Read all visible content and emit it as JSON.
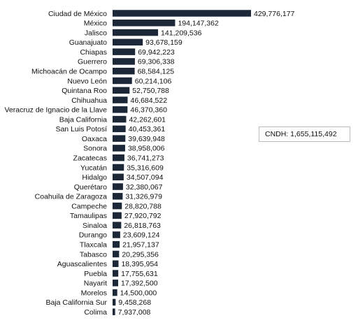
{
  "chart_data": {
    "type": "bar",
    "orientation": "horizontal",
    "bar_color": "#1c2738",
    "categories": [
      "Ciudad de México",
      "México",
      "Jalisco",
      "Guanajuato",
      "Chiapas",
      "Guerrero",
      "Michoacán de Ocampo",
      "Nuevo León",
      "Quintana Roo",
      "Chihuahua",
      "Veracruz de Ignacio de la Llave",
      "Baja California",
      "San Luis Potosí",
      "Oaxaca",
      "Sonora",
      "Zacatecas",
      "Yucatán",
      "Hidalgo",
      "Querétaro",
      "Coahuila de Zaragoza",
      "Campeche",
      "Tamaulipas",
      "Sinaloa",
      "Durango",
      "Tlaxcala",
      "Tabasco",
      "Aguascalientes",
      "Puebla",
      "Nayarit",
      "Morelos",
      "Baja California Sur",
      "Colima"
    ],
    "values": [
      429776177,
      194147362,
      141209536,
      93678159,
      69942223,
      69306338,
      68584125,
      60214106,
      52750788,
      46684522,
      46370360,
      42262601,
      40453361,
      39639948,
      38958006,
      36741273,
      35316609,
      34507094,
      32380067,
      31326979,
      28820788,
      27920792,
      26818763,
      23609124,
      21957137,
      20295356,
      18395954,
      17755631,
      17392500,
      14500000,
      9458268,
      7937008
    ],
    "value_labels": [
      "429,776,177",
      "194,147,362",
      "141,209,536",
      "93,678,159",
      "69,942,223",
      "69,306,338",
      "68,584,125",
      "60,214,106",
      "52,750,788",
      "46,684,522",
      "46,370,360",
      "42,262,601",
      "40,453,361",
      "39,639,948",
      "38,958,006",
      "36,741,273",
      "35,316,609",
      "34,507,094",
      "32,380,067",
      "31,326,979",
      "28,820,788",
      "27,920,792",
      "26,818,763",
      "23,609,124",
      "21,957,137",
      "20,295,356",
      "18,395,954",
      "17,755,631",
      "17,392,500",
      "14,500,000",
      "9,458,268",
      "7,937,008"
    ],
    "grid": false
  },
  "total_box": {
    "text": "CNDH: 1,655,115,492"
  }
}
